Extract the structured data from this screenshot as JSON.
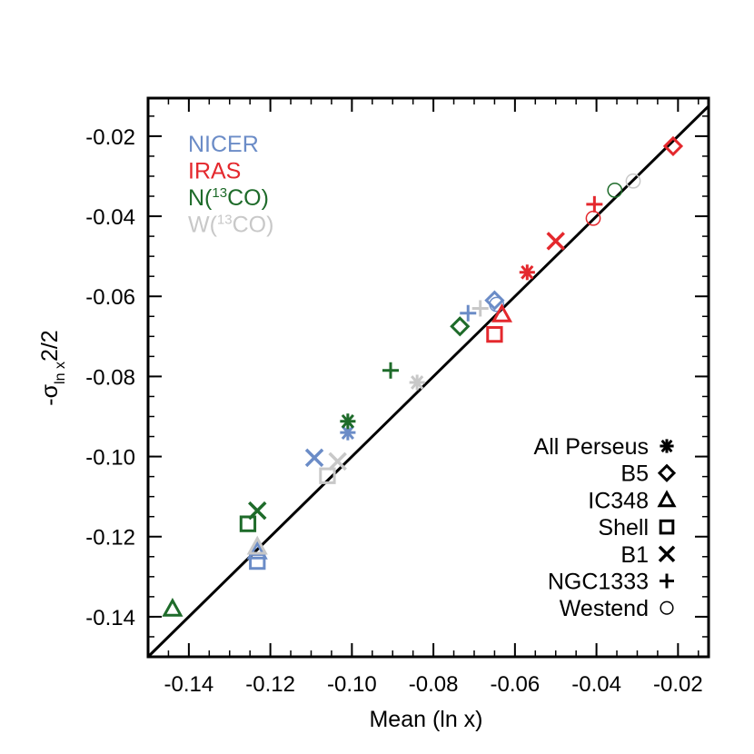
{
  "chart_data": {
    "type": "scatter",
    "xlabel": "Mean (ln x)",
    "ylabel_main": "-σ",
    "ylabel_sub": "ln x",
    "ylabel_tail": "2/2",
    "xlim": [
      -0.15,
      -0.0125
    ],
    "ylim": [
      -0.15,
      -0.0105
    ],
    "x_ticks": [
      -0.14,
      -0.12,
      -0.1,
      -0.08,
      -0.06,
      -0.04,
      -0.02
    ],
    "x_tick_labels": [
      "-0.14",
      "-0.12",
      "-0.10",
      "-0.08",
      "-0.06",
      "-0.04",
      "-0.02"
    ],
    "y_ticks": [
      -0.14,
      -0.12,
      -0.1,
      -0.08,
      -0.06,
      -0.04,
      -0.02
    ],
    "y_tick_labels": [
      "-0.14",
      "-0.12",
      "-0.10",
      "-0.08",
      "-0.06",
      "-0.04",
      "-0.02"
    ],
    "reference_line": [
      [
        -0.15,
        -0.15
      ],
      [
        -0.0125,
        -0.0125
      ]
    ],
    "datasets": [
      {
        "label": "NICER",
        "label_suffix": "",
        "label_sup": "",
        "label_close": "",
        "color": "#6b8cc7"
      },
      {
        "label": "IRAS",
        "label_suffix": "",
        "label_sup": "",
        "label_close": "",
        "color": "#e4282d"
      },
      {
        "label": "N(",
        "label_sup": "13",
        "label_suffix": "CO)",
        "label_close": "",
        "color": "#1e6b2a"
      },
      {
        "label": "W(",
        "label_sup": "13",
        "label_suffix": "CO)",
        "label_close": "",
        "color": "#c8c8c8"
      }
    ],
    "regions": [
      {
        "name": "All Perseus",
        "marker": "asterisk"
      },
      {
        "name": "B5",
        "marker": "diamond"
      },
      {
        "name": "IC348",
        "marker": "triangle"
      },
      {
        "name": "Shell",
        "marker": "square"
      },
      {
        "name": "B1",
        "marker": "x"
      },
      {
        "name": "NGC1333",
        "marker": "plus"
      },
      {
        "name": "Westend",
        "marker": "circle"
      }
    ],
    "points": [
      {
        "dataset": "NICER",
        "region": "All Perseus",
        "x": -0.101,
        "y": -0.094
      },
      {
        "dataset": "NICER",
        "region": "B5",
        "x": -0.065,
        "y": -0.061
      },
      {
        "dataset": "NICER",
        "region": "IC348",
        "x": -0.1232,
        "y": -0.1237
      },
      {
        "dataset": "NICER",
        "region": "Shell",
        "x": -0.1232,
        "y": -0.1262
      },
      {
        "dataset": "NICER",
        "region": "B1",
        "x": -0.1092,
        "y": -0.1003
      },
      {
        "dataset": "NICER",
        "region": "NGC1333",
        "x": -0.0715,
        "y": -0.0642
      },
      {
        "dataset": "NICER",
        "region": "Westend",
        "x": -0.0645,
        "y": -0.062
      },
      {
        "dataset": "IRAS",
        "region": "All Perseus",
        "x": -0.057,
        "y": -0.054
      },
      {
        "dataset": "IRAS",
        "region": "B5",
        "x": -0.0212,
        "y": -0.0225
      },
      {
        "dataset": "IRAS",
        "region": "IC348",
        "x": -0.0632,
        "y": -0.0645
      },
      {
        "dataset": "IRAS",
        "region": "Shell",
        "x": -0.065,
        "y": -0.0695
      },
      {
        "dataset": "IRAS",
        "region": "B1",
        "x": -0.05,
        "y": -0.0462
      },
      {
        "dataset": "IRAS",
        "region": "NGC1333",
        "x": -0.0405,
        "y": -0.037
      },
      {
        "dataset": "IRAS",
        "region": "Westend",
        "x": -0.0408,
        "y": -0.0405
      },
      {
        "dataset": "N(13CO)",
        "region": "All Perseus",
        "x": -0.101,
        "y": -0.0912
      },
      {
        "dataset": "N(13CO)",
        "region": "B5",
        "x": -0.0735,
        "y": -0.0675
      },
      {
        "dataset": "N(13CO)",
        "region": "IC348",
        "x": -0.144,
        "y": -0.138
      },
      {
        "dataset": "N(13CO)",
        "region": "Shell",
        "x": -0.1255,
        "y": -0.1168
      },
      {
        "dataset": "N(13CO)",
        "region": "B1",
        "x": -0.1232,
        "y": -0.1135
      },
      {
        "dataset": "N(13CO)",
        "region": "NGC1333",
        "x": -0.0905,
        "y": -0.0785
      },
      {
        "dataset": "N(13CO)",
        "region": "Westend",
        "x": -0.0355,
        "y": -0.0335
      },
      {
        "dataset": "W(13CO)",
        "region": "All Perseus",
        "x": -0.084,
        "y": -0.0815
      },
      {
        "dataset": "W(13CO)",
        "region": "IC348",
        "x": -0.1232,
        "y": -0.1225
      },
      {
        "dataset": "W(13CO)",
        "region": "Shell",
        "x": -0.106,
        "y": -0.1048
      },
      {
        "dataset": "W(13CO)",
        "region": "B1",
        "x": -0.1035,
        "y": -0.1012
      },
      {
        "dataset": "W(13CO)",
        "region": "NGC1333",
        "x": -0.0685,
        "y": -0.063
      },
      {
        "dataset": "W(13CO)",
        "region": "Westend",
        "x": -0.031,
        "y": -0.0312
      }
    ]
  }
}
